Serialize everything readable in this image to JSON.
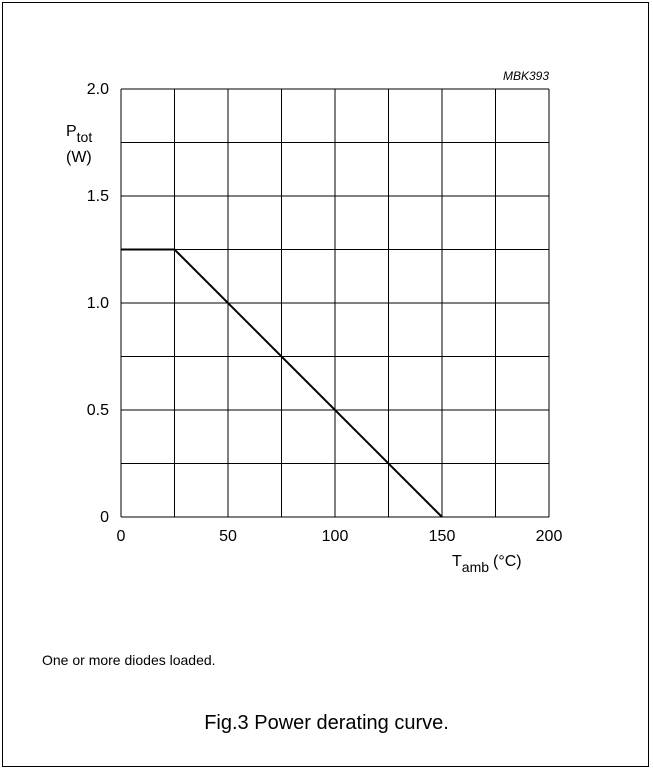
{
  "chart_data": {
    "type": "line",
    "code": "MBK393",
    "ylabel": {
      "main": "P",
      "sub": "tot",
      "unit": "(W)"
    },
    "xlabel": {
      "main": "T",
      "sub": "amb",
      "unit": "(°C)"
    },
    "xlim": [
      0,
      200
    ],
    "ylim": [
      0,
      2.0
    ],
    "x_ticks": [
      {
        "value": 0,
        "label": "0"
      },
      {
        "value": 50,
        "label": "50"
      },
      {
        "value": 100,
        "label": "100"
      },
      {
        "value": 150,
        "label": "150"
      },
      {
        "value": 200,
        "label": "200"
      }
    ],
    "y_ticks": [
      {
        "value": 0,
        "label": "0"
      },
      {
        "value": 0.5,
        "label": "0.5"
      },
      {
        "value": 1.0,
        "label": "1.0"
      },
      {
        "value": 1.5,
        "label": "1.5"
      },
      {
        "value": 2.0,
        "label": "2.0"
      }
    ],
    "x_grid_step": 25,
    "y_grid_step": 0.25,
    "grid": true,
    "series": [
      {
        "x": [
          0,
          25,
          150
        ],
        "y": [
          1.25,
          1.25,
          0
        ]
      }
    ]
  },
  "footnote": "One or more diodes loaded.",
  "caption": "Fig.3  Power derating curve."
}
